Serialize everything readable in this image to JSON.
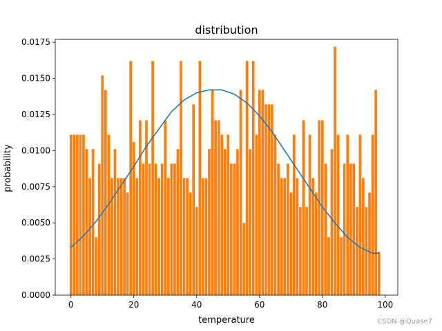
{
  "chart_data": {
    "type": "bar",
    "title": "distribution",
    "xlabel": "temperature",
    "ylabel": "probability",
    "xlim": [
      -5,
      104
    ],
    "ylim": [
      0,
      0.0177
    ],
    "xticks": [
      0,
      20,
      40,
      60,
      80,
      100
    ],
    "yticks": [
      0.0,
      0.0025,
      0.005,
      0.0075,
      0.01,
      0.0125,
      0.015,
      0.0175
    ],
    "xtick_labels": [
      "0",
      "20",
      "40",
      "60",
      "80",
      "100"
    ],
    "ytick_labels": [
      "0.0000",
      "0.0025",
      "0.0050",
      "0.0075",
      "0.0100",
      "0.0125",
      "0.0150",
      "0.0175"
    ],
    "bar_color": "#ff7f0e",
    "curve_color": "#1f77b4",
    "series": [
      {
        "type": "bar",
        "x": [
          0,
          1,
          2,
          3,
          4,
          5,
          6,
          7,
          8,
          9,
          10,
          11,
          12,
          13,
          14,
          15,
          16,
          17,
          18,
          19,
          20,
          21,
          22,
          23,
          24,
          25,
          26,
          27,
          28,
          29,
          30,
          31,
          32,
          33,
          34,
          35,
          36,
          37,
          38,
          39,
          40,
          41,
          42,
          43,
          44,
          45,
          46,
          47,
          48,
          49,
          50,
          51,
          52,
          53,
          54,
          55,
          56,
          57,
          58,
          59,
          60,
          61,
          62,
          63,
          64,
          65,
          66,
          67,
          68,
          69,
          70,
          71,
          72,
          73,
          74,
          75,
          76,
          77,
          78,
          79,
          80,
          81,
          82,
          83,
          84,
          85,
          86,
          87,
          88,
          89,
          90,
          91,
          92,
          93,
          94,
          95,
          96,
          97,
          98
        ],
        "values": [
          0.0111,
          0.0111,
          0.0111,
          0.0111,
          0.0111,
          0.0101,
          0.0081,
          0.0101,
          0.004,
          0.0091,
          0.0152,
          0.0142,
          0.0111,
          0.0081,
          0.0101,
          0.0081,
          0.0081,
          0.0081,
          0.0071,
          0.0162,
          0.0106,
          0.0081,
          0.0121,
          0.0091,
          0.0121,
          0.0091,
          0.0162,
          0.0091,
          0.0081,
          0.0091,
          0.0121,
          0.0081,
          0.0091,
          0.0091,
          0.0101,
          0.0162,
          0.0081,
          0.0081,
          0.0071,
          0.0132,
          0.0061,
          0.0162,
          0.0081,
          0.0081,
          0.0101,
          0.0142,
          0.0121,
          0.0121,
          0.0111,
          0.0101,
          0.0111,
          0.0091,
          0.0091,
          0.0101,
          0.0142,
          0.005,
          0.0162,
          0.0101,
          0.0162,
          0.0111,
          0.0142,
          0.0142,
          0.0132,
          0.0132,
          0.0132,
          0.0111,
          0.0091,
          0.0081,
          0.0081,
          0.0091,
          0.0071,
          0.0111,
          0.0081,
          0.0061,
          0.0121,
          0.0061,
          0.0111,
          0.0081,
          0.0071,
          0.0121,
          0.0121,
          0.0091,
          0.004,
          0.0101,
          0.0172,
          0.0111,
          0.004,
          0.0091,
          0.0111,
          0.0091,
          0.0091,
          0.0061,
          0.0111,
          0.0081,
          0.0061,
          0.0071,
          0.0111,
          0.0142,
          0.003
        ]
      },
      {
        "type": "line",
        "x": [
          0,
          4,
          8,
          12,
          16,
          20,
          24,
          28,
          32,
          36,
          40,
          44,
          48,
          52,
          56,
          60,
          64,
          68,
          72,
          76,
          80,
          84,
          88,
          92,
          96,
          98
        ],
        "values": [
          0.0033,
          0.0041,
          0.0051,
          0.0063,
          0.0076,
          0.0089,
          0.0103,
          0.0115,
          0.0127,
          0.0135,
          0.014,
          0.0142,
          0.0142,
          0.0139,
          0.0133,
          0.0124,
          0.0113,
          0.01,
          0.0087,
          0.0074,
          0.0061,
          0.005,
          0.004,
          0.0033,
          0.0029,
          0.0029
        ]
      }
    ]
  },
  "watermark": "CSDN @Quase7"
}
